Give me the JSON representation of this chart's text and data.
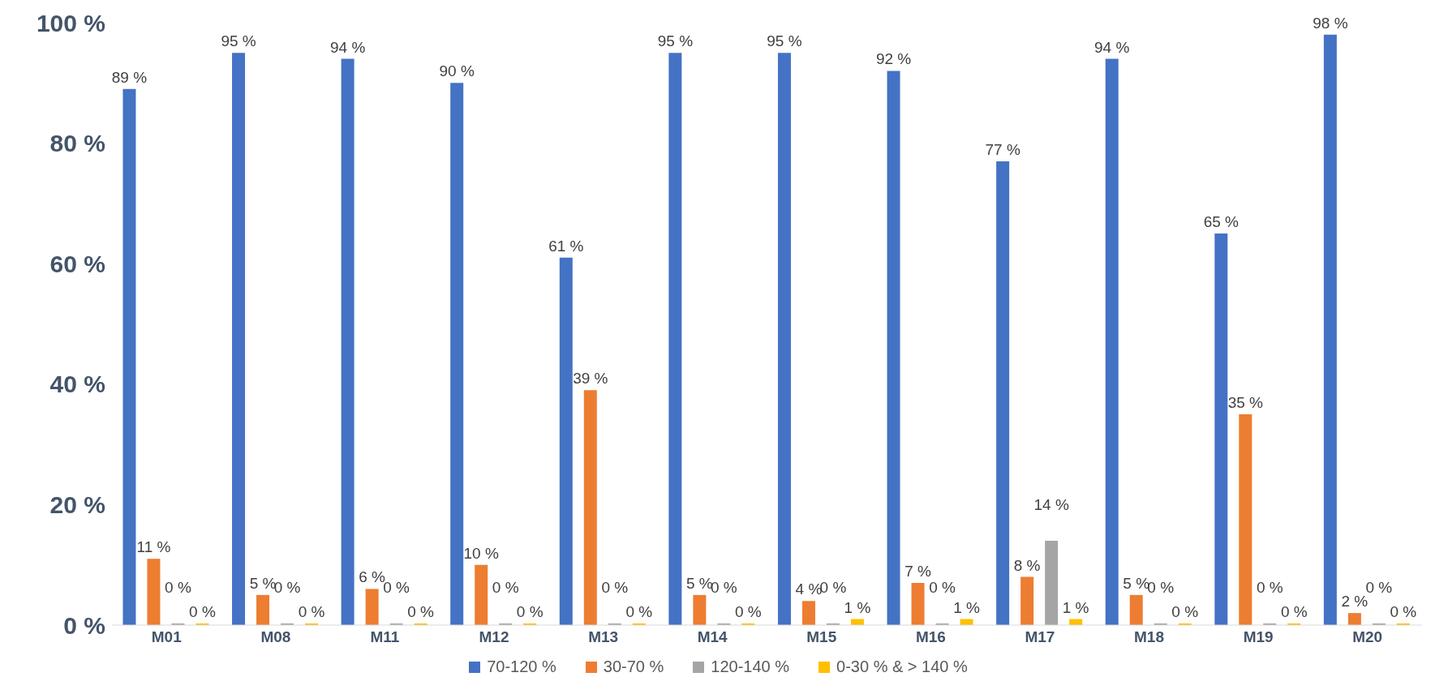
{
  "chart_data": {
    "type": "bar",
    "categories": [
      "M01",
      "M08",
      "M11",
      "M12",
      "M13",
      "M14",
      "M15",
      "M16",
      "M17",
      "M18",
      "M19",
      "M20"
    ],
    "series": [
      {
        "name": "70-120 %",
        "color": "#4472c4",
        "values": [
          89,
          95,
          94,
          90,
          61,
          95,
          95,
          92,
          77,
          94,
          65,
          98
        ],
        "value_labels": [
          "89 %",
          "95 %",
          "94 %",
          "90 %",
          "61 %",
          "95 %",
          "95 %",
          "92 %",
          "77 %",
          "94 %",
          "65 %",
          "98 %"
        ]
      },
      {
        "name": "30-70 %",
        "color": "#ed7d31",
        "values": [
          11,
          5,
          6,
          10,
          39,
          5,
          4,
          7,
          8,
          5,
          35,
          2
        ],
        "value_labels": [
          "11 %",
          "5 %",
          "6 %",
          "10 %",
          "39 %",
          "5 %",
          "4 %",
          "7 %",
          "8 %",
          "5 %",
          "35 %",
          "2 %"
        ]
      },
      {
        "name": "120-140 %",
        "color": "#a5a5a5",
        "values": [
          0,
          0,
          0,
          0,
          0,
          0,
          0,
          0,
          14,
          0,
          0,
          0
        ],
        "value_labels": [
          "0 %",
          "0 %",
          "0 %",
          "0 %",
          "0 %",
          "0 %",
          "0 %",
          "0 %",
          "14 %",
          "0 %",
          "0 %",
          "0 %"
        ]
      },
      {
        "name": "0-30 % & > 140 %",
        "color": "#ffc000",
        "values": [
          0,
          0,
          0,
          0,
          0,
          0,
          1,
          1,
          1,
          0,
          0,
          0
        ],
        "value_labels": [
          "0 %",
          "0 %",
          "0 %",
          "0 %",
          "0 %",
          "0 %",
          "1 %",
          "1 %",
          "1 %",
          "0 %",
          "0 %",
          "0 %"
        ]
      }
    ],
    "ylim": [
      0,
      100
    ],
    "yticks": [
      {
        "value": 0,
        "label": "0 %"
      },
      {
        "value": 20,
        "label": "20 %"
      },
      {
        "value": 40,
        "label": "40 %"
      },
      {
        "value": 60,
        "label": "60 %"
      },
      {
        "value": 80,
        "label": "80 %"
      },
      {
        "value": 100,
        "label": "100 %"
      }
    ],
    "grid": false,
    "legend": "bottom"
  }
}
